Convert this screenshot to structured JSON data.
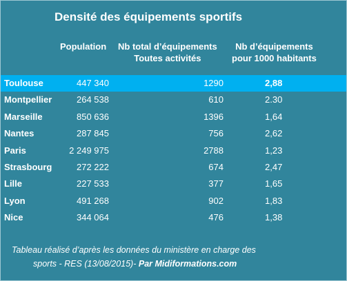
{
  "chart_data": {
    "type": "table",
    "title": "Densité des équipements sportifs",
    "columns": {
      "population": "Population",
      "total_line1": "Nb total d’équipements",
      "total_line2": "Toutes activités",
      "density_line1": "Nb d’équipements",
      "density_line2": "pour 1000 habitants"
    },
    "rows": [
      {
        "city": "Toulouse",
        "population": "447 340",
        "total": "1290",
        "density": "2,88",
        "highlight": true
      },
      {
        "city": "Montpellier",
        "population": "264 538",
        "total": "610",
        "density": "2.30",
        "highlight": false
      },
      {
        "city": "Marseille",
        "population": "850 636",
        "total": "1396",
        "density": "1,64",
        "highlight": false
      },
      {
        "city": "Nantes",
        "population": "287 845",
        "total": "756",
        "density": "2,62",
        "highlight": false
      },
      {
        "city": "Paris",
        "population": "2 249 975",
        "total": "2788",
        "density": "1,23",
        "highlight": false
      },
      {
        "city": "Strasbourg",
        "population": "272 222",
        "total": "674",
        "density": "2,47",
        "highlight": false
      },
      {
        "city": "Lille",
        "population": "227 533",
        "total": "377",
        "density": "1,65",
        "highlight": false
      },
      {
        "city": "Lyon",
        "population": "491 268",
        "total": "902",
        "density": "1,83",
        "highlight": false
      },
      {
        "city": "Nice",
        "population": "344 064",
        "total": "476",
        "density": "1,38",
        "highlight": false
      }
    ],
    "footer_line1": "Tableau réalisé d’après les données du ministère en charge des",
    "footer_line2": "sports - RES (13/08/2015)- ",
    "footer_brand": "Par Midiformations.com"
  },
  "colors": {
    "background": "#31859c",
    "highlight_row": "#00b0f0",
    "text": "#ffffff"
  }
}
